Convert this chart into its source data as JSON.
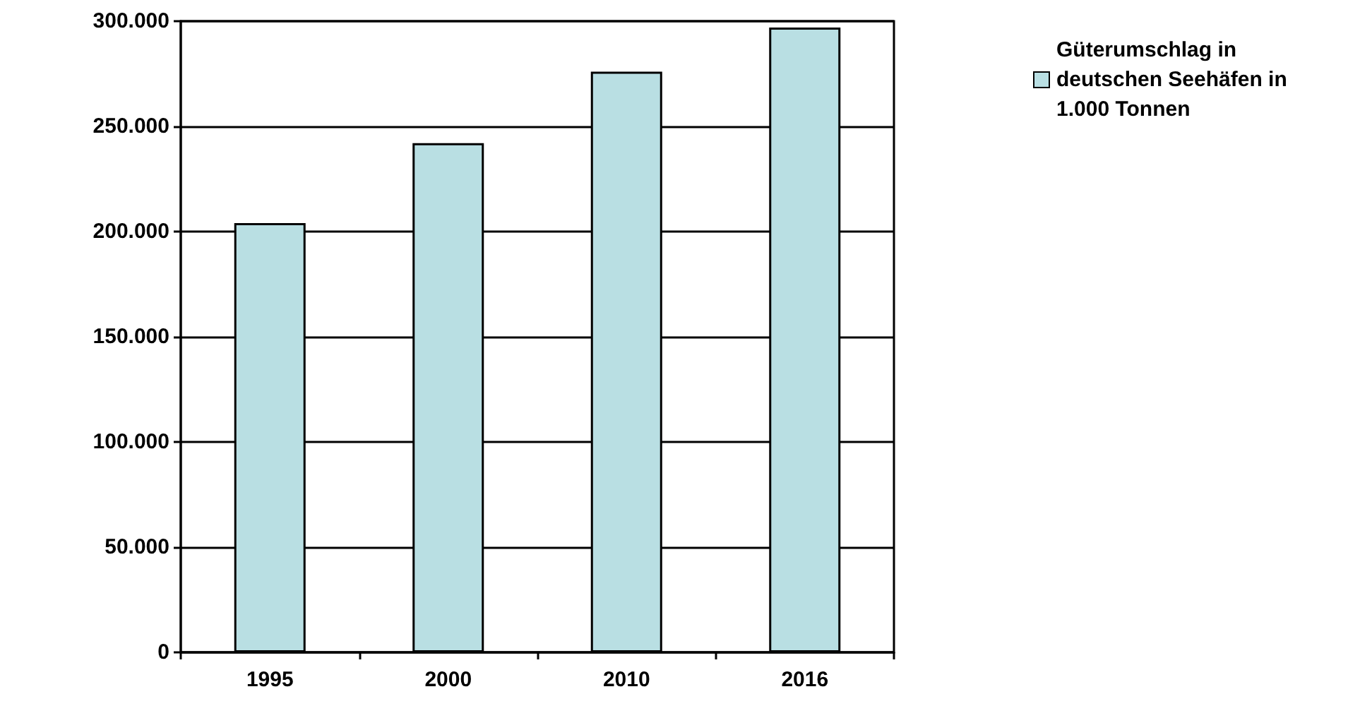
{
  "chart_data": {
    "type": "bar",
    "categories": [
      "1995",
      "2000",
      "2010",
      "2016"
    ],
    "series": [
      {
        "name": "Güterumschlag in deutschen Seehäfen in 1.000 Tonnen",
        "color": "#b9dfe3",
        "values": [
          204000,
          242000,
          276000,
          297000
        ]
      }
    ],
    "ylim": [
      0,
      300000
    ],
    "yticks": [
      {
        "value": 0,
        "label": "0"
      },
      {
        "value": 50000,
        "label": "50.000"
      },
      {
        "value": 100000,
        "label": "100.000"
      },
      {
        "value": 150000,
        "label": "150.000"
      },
      {
        "value": 200000,
        "label": "200.000"
      },
      {
        "value": 250000,
        "label": "250.000"
      },
      {
        "value": 300000,
        "label": "300.000"
      }
    ],
    "grid": "y",
    "legend": "top right"
  }
}
